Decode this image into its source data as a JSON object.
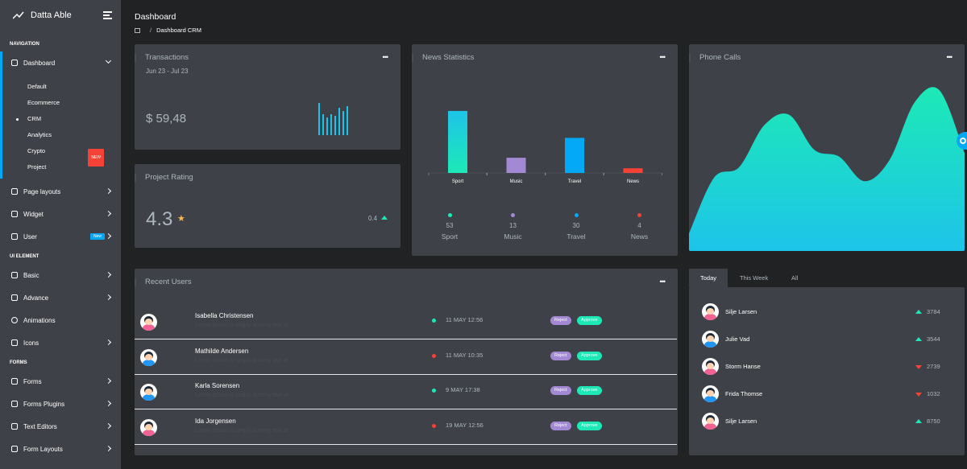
{
  "brand": {
    "name": "Datta Able"
  },
  "sidebar": {
    "captions": [
      "NAVIGATION",
      "UI ELEMENT",
      "FORMS"
    ],
    "dashboard": "Dashboard",
    "sub_items": [
      "Default",
      "Ecommerce",
      "CRM",
      "Analytics",
      "Crypto",
      "Project"
    ],
    "crypto_badge": "NEW",
    "items_nav": [
      "Page layouts",
      "Widget",
      "User"
    ],
    "user_badge": "New",
    "items_ui": [
      "Basic",
      "Advance",
      "Animations",
      "Icons"
    ],
    "items_forms": [
      "Forms",
      "Forms Plugins",
      "Text Editors",
      "Form Layouts"
    ]
  },
  "header": {
    "title": "Dashboard",
    "breadcrumb_sep": "/",
    "breadcrumb": "Dashboard CRM"
  },
  "transactions": {
    "title": "Transactions",
    "range": "Jun 23 - Jul 23",
    "amount": "$ 59,48",
    "bars": [
      40,
      26,
      22,
      26,
      24,
      34,
      30,
      36
    ]
  },
  "project_rating": {
    "title": "Project Rating",
    "rating": "4.3",
    "change": "0.4"
  },
  "news": {
    "title": "News Statistics",
    "chart_data": {
      "type": "bar",
      "categories": [
        "Sport",
        "Music",
        "Travel",
        "News"
      ],
      "values": [
        53,
        13,
        30,
        4
      ],
      "ylim": [
        0,
        55
      ],
      "colors": [
        "#1de9b6",
        "#a389d4",
        "#04a9f5",
        "#f44236"
      ]
    },
    "stats": [
      {
        "value": "53",
        "label": "Sport",
        "color": "#1de9b6"
      },
      {
        "value": "13",
        "label": "Music",
        "color": "#a389d4"
      },
      {
        "value": "30",
        "label": "Travel",
        "color": "#04a9f5"
      },
      {
        "value": "4",
        "label": "News",
        "color": "#f44236"
      }
    ]
  },
  "phone_calls": {
    "title": "Phone Calls",
    "chart_data": {
      "type": "area",
      "values": [
        10,
        42,
        48,
        72,
        78,
        58,
        54,
        40,
        52,
        85,
        92,
        56
      ],
      "ylim": [
        0,
        100
      ],
      "colors": [
        "#1de9b6",
        "#1dc4e9"
      ]
    }
  },
  "recent_users": {
    "title": "Recent Users",
    "reject": "Reject",
    "approve": "Approve",
    "rows": [
      {
        "name": "Isabella Christensen",
        "desc": "Lorem Ipsum is simply dummy text of",
        "date": "11 MAY 12:56",
        "status": "#1de9b6",
        "avatar": "pink"
      },
      {
        "name": "Mathilde Andersen",
        "desc": "Lorem Ipsum is simply dummy text of",
        "date": "11 MAY 10:35",
        "status": "#f44236",
        "avatar": "blue"
      },
      {
        "name": "Karla Sorensen",
        "desc": "Lorem Ipsum is simply dummy text of",
        "date": "9 MAY 17:38",
        "status": "#1de9b6",
        "avatar": "blue"
      },
      {
        "name": "Ida Jorgensen",
        "desc": "Lorem Ipsum is simply dummy text of",
        "date": "19 MAY 12:56",
        "status": "#f44236",
        "avatar": "pink"
      }
    ]
  },
  "tabs": {
    "labels": [
      "Today",
      "This Week",
      "All"
    ],
    "rows": [
      {
        "name": "Silje Larsen",
        "value": "3784",
        "trend": "up"
      },
      {
        "name": "Julie Vad",
        "value": "3544",
        "trend": "up"
      },
      {
        "name": "Storm Hanse",
        "value": "2739",
        "trend": "down"
      },
      {
        "name": "Frida Thomse",
        "value": "1032",
        "trend": "down"
      },
      {
        "name": "Silje Larsen",
        "value": "8750",
        "trend": "up"
      }
    ]
  }
}
